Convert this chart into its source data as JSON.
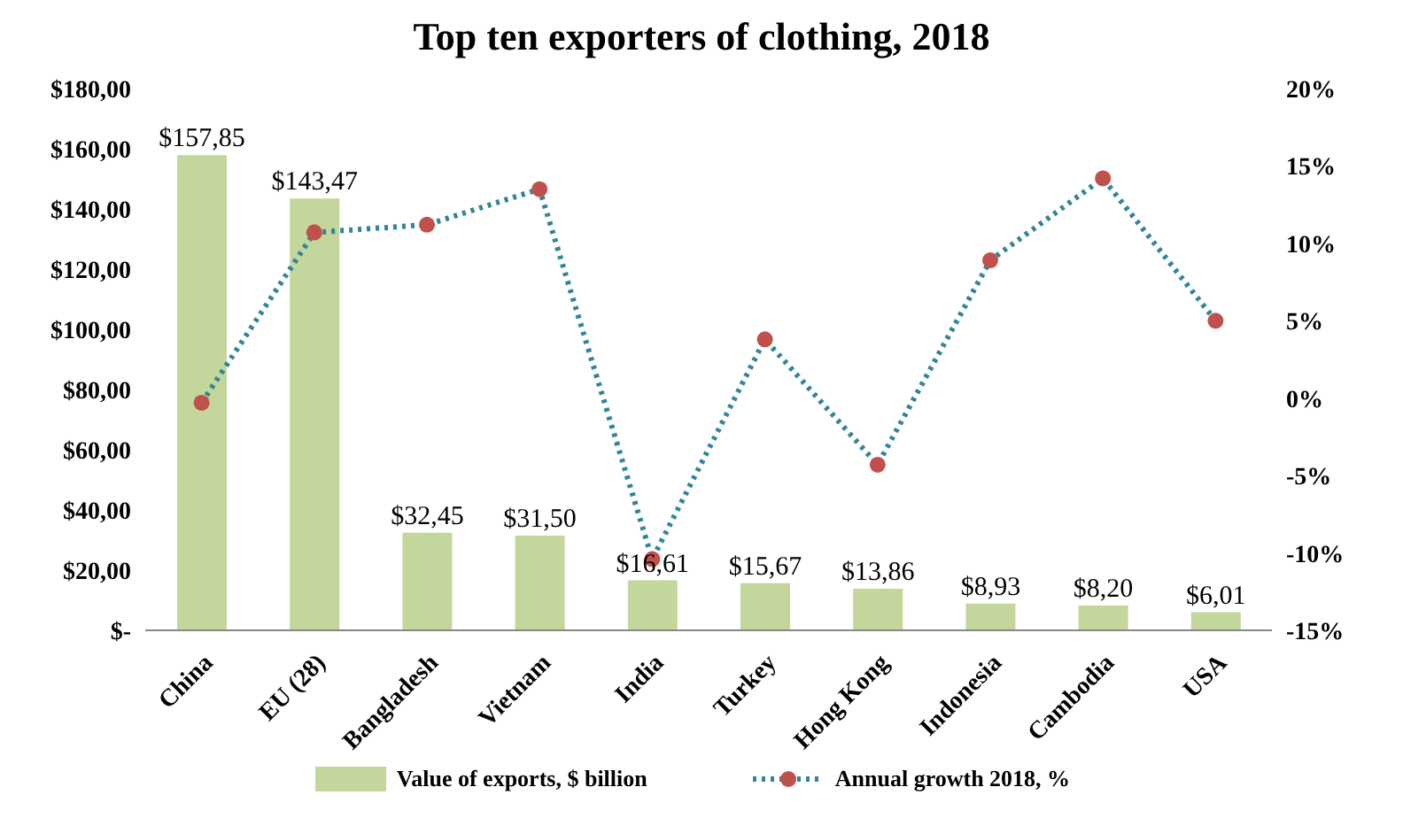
{
  "chart_data": {
    "type": "bar",
    "title": "Top ten exporters of clothing, 2018",
    "categories": [
      "China",
      "EU (28)",
      "Bangladesh",
      "Vietnam",
      "India",
      "Turkey",
      "Hong Kong",
      "Indonesia",
      "Cambodia",
      "USA"
    ],
    "series": [
      {
        "name": "Value of exports, $ billion",
        "color": "#c3d69b",
        "values": [
          157.85,
          143.47,
          32.45,
          31.5,
          16.61,
          15.67,
          13.86,
          8.93,
          8.2,
          6.01
        ],
        "value_labels": [
          "$157,85",
          "$143,47",
          "$32,45",
          "$31,50",
          "$16,61",
          "$15,67",
          "$13,86",
          "$8,93",
          "$8,20",
          "$6,01"
        ]
      },
      {
        "name": "Annual growth 2018, %",
        "type": "line",
        "axis": "y2",
        "color": "#31849b",
        "colors": [
          "#c0504d",
          "#c0504d",
          "#c0504d",
          "#c0504d",
          "#c0504d",
          "#c0504d",
          "#c0504d",
          "#c0504d",
          "#c0504d",
          "#c0504d"
        ],
        "marker": "circle",
        "line_style": "dotted",
        "values": [
          -0.3,
          10.7,
          11.2,
          13.5,
          -10.4,
          3.8,
          -4.3,
          8.9,
          14.2,
          5.0
        ]
      }
    ],
    "ylim": [
      0,
      180
    ],
    "yticks": [
      {
        "value": 0,
        "label": "$-"
      },
      {
        "value": 20,
        "label": "$20,00"
      },
      {
        "value": 40,
        "label": "$40,00"
      },
      {
        "value": 60,
        "label": "$60,00"
      },
      {
        "value": 80,
        "label": "$80,00"
      },
      {
        "value": 100,
        "label": "$100,00"
      },
      {
        "value": 120,
        "label": "$120,00"
      },
      {
        "value": 140,
        "label": "$140,00"
      },
      {
        "value": 160,
        "label": "$160,00"
      },
      {
        "value": 180,
        "label": "$180,00"
      }
    ],
    "y2lim": [
      -15,
      20
    ],
    "y2ticks": [
      {
        "value": -15,
        "label": "-15%"
      },
      {
        "value": -10,
        "label": "-10%"
      },
      {
        "value": -5,
        "label": "-5%"
      },
      {
        "value": 0,
        "label": "0%"
      },
      {
        "value": 5,
        "label": "5%"
      },
      {
        "value": 10,
        "label": "10%"
      },
      {
        "value": 15,
        "label": "15%"
      },
      {
        "value": 20,
        "label": "20%"
      }
    ],
    "grid": false,
    "legend": "bottom"
  }
}
